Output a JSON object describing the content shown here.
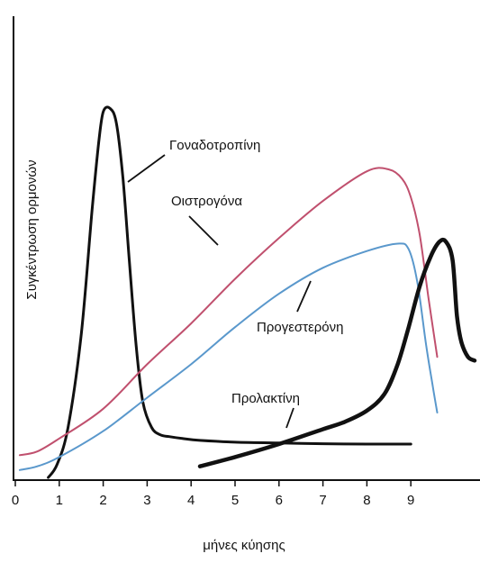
{
  "chart_data": {
    "type": "line",
    "xlabel": "μήνες κύησης",
    "ylabel": "Συγκέντρωση ορμονών",
    "xlim": [
      0,
      10.5
    ],
    "ylim": [
      0,
      100
    ],
    "x_ticks": [
      0,
      1,
      2,
      3,
      4,
      5,
      6,
      7,
      8,
      9
    ],
    "y_ticks": [],
    "grid": false,
    "legend": "none",
    "series": [
      {
        "name": "Γοναδοτροπίνη",
        "color": "#111111",
        "x": [
          0.75,
          0.95,
          1.2,
          1.5,
          1.75,
          1.9,
          2.0,
          2.15,
          2.3,
          2.45,
          2.6,
          2.75,
          2.9,
          3.1,
          3.3,
          3.5,
          3.8,
          4.2,
          5.0,
          6.0,
          7.0,
          8.0,
          9.0
        ],
        "values": [
          -0.5,
          3,
          13,
          38,
          72,
          90,
          98,
          99,
          95,
          80,
          57,
          35,
          20,
          13,
          11,
          10.5,
          10,
          9.5,
          9,
          8.8,
          8.6,
          8.5,
          8.5
        ]
      },
      {
        "name": "Οιστρογόνα",
        "color": "#c0506e",
        "x": [
          0.1,
          0.5,
          1.0,
          2.0,
          3.0,
          4.0,
          5.0,
          6.0,
          7.0,
          8.0,
          8.5,
          8.8,
          9.0,
          9.2,
          9.4,
          9.6
        ],
        "values": [
          5.5,
          6.5,
          10,
          18,
          30,
          41,
          53,
          64,
          74,
          82,
          82.5,
          80,
          75,
          65,
          48,
          32
        ]
      },
      {
        "name": "Προγεστερόνη",
        "color": "#5a98cc",
        "x": [
          0.1,
          0.5,
          1.0,
          2.0,
          3.0,
          4.0,
          5.0,
          6.0,
          7.0,
          8.0,
          8.7,
          8.95,
          9.15,
          9.35,
          9.5,
          9.6
        ],
        "values": [
          1.5,
          2.5,
          5,
          12,
          21,
          30,
          40,
          49,
          56,
          60.5,
          62.5,
          61,
          52,
          35,
          24,
          17
        ]
      },
      {
        "name": "Προλακτίνη",
        "color": "#111111",
        "x": [
          4.2,
          5.0,
          6.0,
          7.0,
          7.5,
          8.0,
          8.4,
          8.7,
          8.95,
          9.2,
          9.45,
          9.65,
          9.8,
          9.95,
          10.05,
          10.15,
          10.3,
          10.45
        ],
        "values": [
          2.5,
          5,
          8.5,
          12.5,
          14.5,
          17.5,
          22,
          30,
          40,
          51,
          59,
          63,
          63,
          58,
          43,
          36,
          32,
          31
        ]
      }
    ],
    "annotations": [
      {
        "series": 0,
        "text": "Γοναδοτροπίνη"
      },
      {
        "series": 1,
        "text": "Οιστρογόνα"
      },
      {
        "series": 2,
        "text": "Προγεστερόνη"
      },
      {
        "series": 3,
        "text": "Προλακτίνη"
      }
    ]
  }
}
